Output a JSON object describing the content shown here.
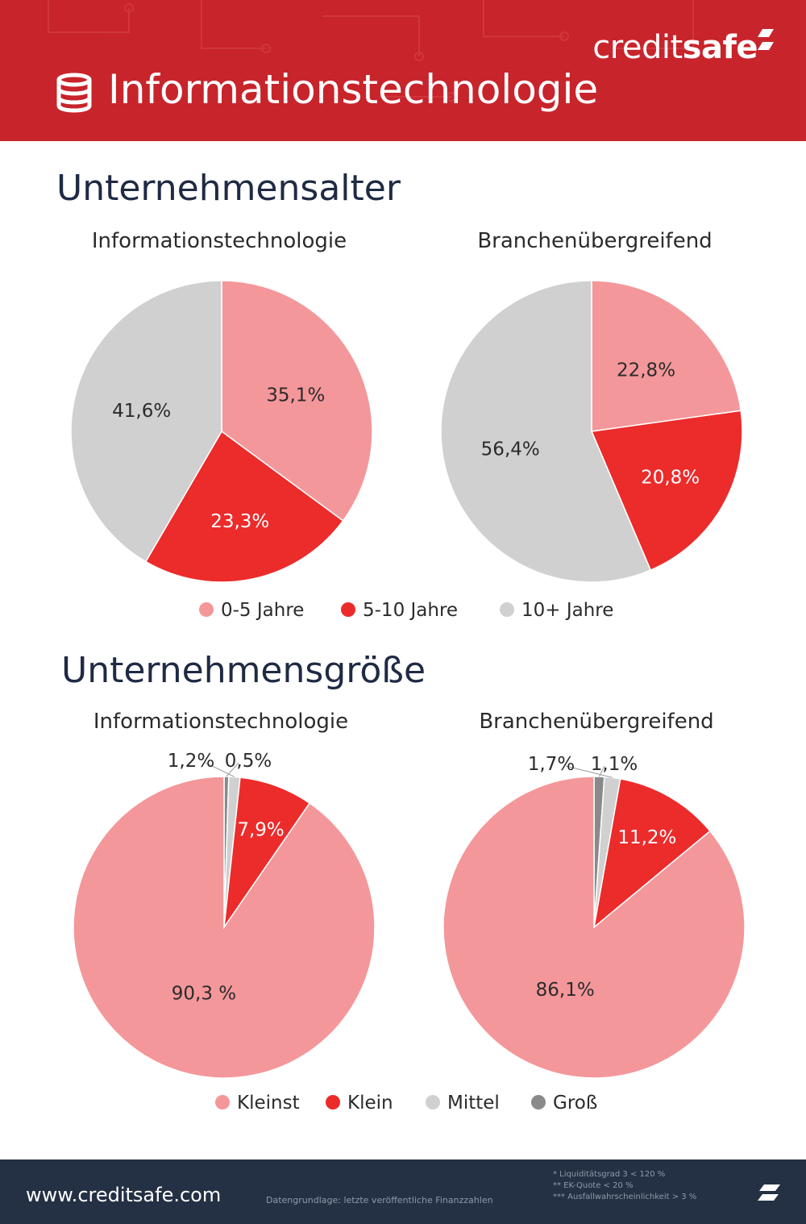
{
  "header": {
    "title": "Informationstechnologie",
    "logo_regular": "credit",
    "logo_bold": "safe"
  },
  "colors": {
    "kleinst": "#f4979a",
    "klein": "#ec2b2b",
    "mittel": "#d0d0d0",
    "gross": "#8a8a8a",
    "header_red": "#c8242b",
    "footer_navy": "#243044"
  },
  "sections": [
    {
      "title": "Unternehmensalter"
    },
    {
      "title": "Unternehmensgröße"
    }
  ],
  "chart_data": [
    {
      "type": "pie",
      "title": "Informationstechnologie",
      "categories": [
        "0-5 Jahre",
        "5-10 Jahre",
        "10+ Jahre"
      ],
      "values": [
        35.1,
        23.3,
        41.6
      ],
      "labels": [
        "35,1%",
        "23,3%",
        "41,6%"
      ],
      "legend": "bottom"
    },
    {
      "type": "pie",
      "title": "Branchenübergreifend",
      "categories": [
        "0-5 Jahre",
        "5-10 Jahre",
        "10+ Jahre"
      ],
      "values": [
        22.8,
        20.8,
        56.4
      ],
      "labels": [
        "22,8%",
        "20,8%",
        "56,4%"
      ],
      "legend": "bottom"
    },
    {
      "type": "pie",
      "title": "Informationstechnologie",
      "categories": [
        "Kleinst",
        "Klein",
        "Mittel",
        "Groß"
      ],
      "values": [
        90.3,
        7.9,
        1.2,
        0.5
      ],
      "labels": [
        "90,3 %",
        "7,9%",
        "1,2%",
        "0,5%"
      ],
      "legend": "bottom"
    },
    {
      "type": "pie",
      "title": "Branchenübergreifend",
      "categories": [
        "Kleinst",
        "Klein",
        "Mittel",
        "Groß"
      ],
      "values": [
        86.1,
        11.2,
        1.7,
        1.1
      ],
      "labels": [
        "86,1%",
        "11,2%",
        "1,7%",
        "1,1%"
      ],
      "legend": "bottom"
    }
  ],
  "legends": {
    "age": [
      "0-5 Jahre",
      "5-10 Jahre",
      "10+ Jahre"
    ],
    "size": [
      "Kleinst",
      "Klein",
      "Mittel",
      "Groß"
    ]
  },
  "footer": {
    "url": "www.creditsafe.com",
    "source": "Datengrundlage: letzte veröffentliche Finanzzahlen",
    "notes": [
      "* Liquiditätsgrad 3 < 120 %",
      "** EK-Quote < 20 %",
      "*** Ausfallwahrscheinlichkeit > 3 %"
    ]
  }
}
